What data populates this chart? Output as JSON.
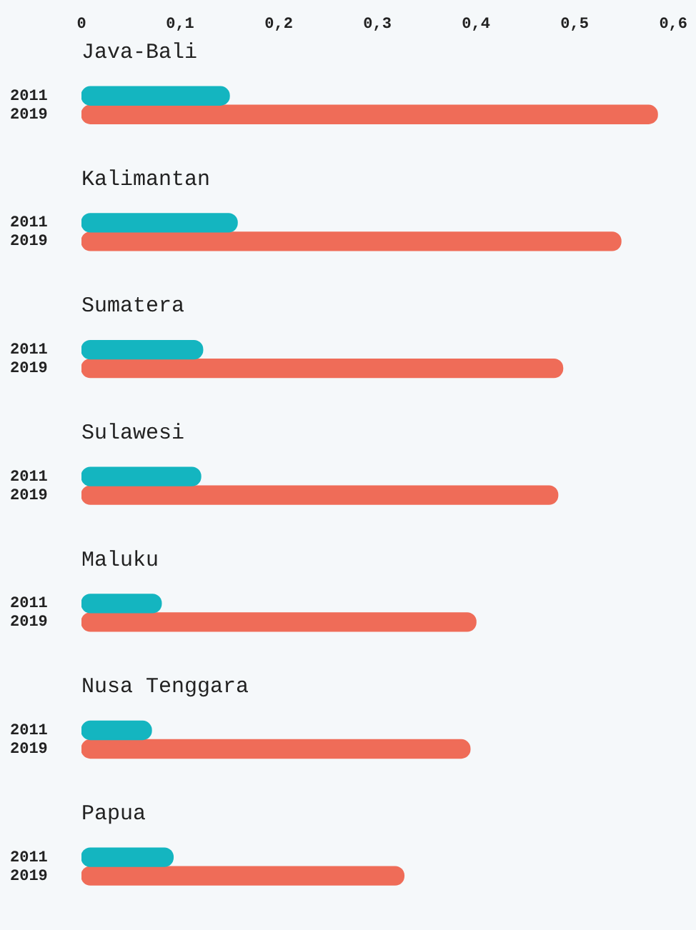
{
  "chart_data": {
    "type": "bar",
    "orientation": "horizontal",
    "categories": [
      "Java-Bali",
      "Kalimantan",
      "Sumatera",
      "Sulawesi",
      "Maluku",
      "Nusa Tenggara",
      "Papua"
    ],
    "series": [
      {
        "name": "2011",
        "color": "#14b5c0",
        "values": [
          0.15,
          0.158,
          0.123,
          0.121,
          0.081,
          0.071,
          0.093
        ]
      },
      {
        "name": "2019",
        "color": "#ef6c58",
        "values": [
          0.584,
          0.547,
          0.488,
          0.483,
          0.4,
          0.394,
          0.327
        ]
      }
    ],
    "xlim": [
      0,
      0.6
    ],
    "xticks": [
      0,
      {
        "value": 0.1,
        "label": "0,1"
      },
      {
        "value": 0.2,
        "label": "0,2"
      },
      {
        "value": 0.3,
        "label": "0,3"
      },
      {
        "value": 0.4,
        "label": "0,4"
      },
      {
        "value": 0.5,
        "label": "0,5"
      },
      {
        "value": 0.6,
        "label": "0,6"
      }
    ],
    "grid": false,
    "legend": false
  }
}
